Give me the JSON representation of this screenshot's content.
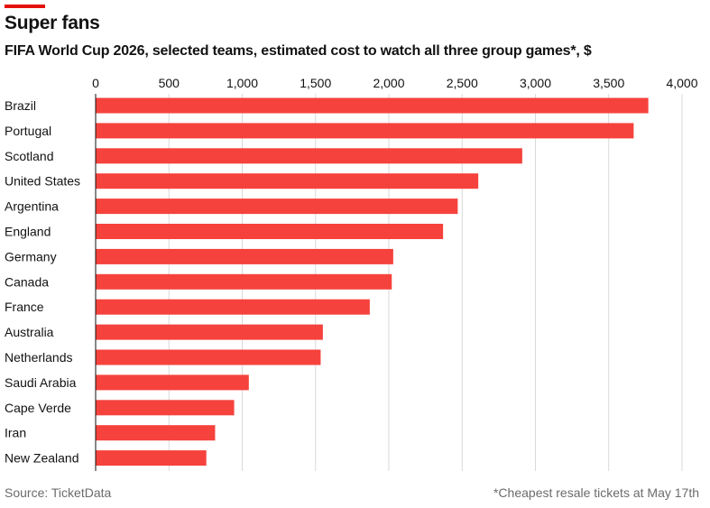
{
  "header": {
    "title": "Super fans",
    "subtitle": "FIFA World Cup 2026, selected teams, estimated cost to watch all three group games*, $"
  },
  "footer": {
    "source": "Source: TicketData",
    "note": "*Cheapest resale tickets at May 17th"
  },
  "colors": {
    "accent": "#e3120b",
    "bar": "#f6423c",
    "grid": "#d9d9d9",
    "axis": "#121212"
  },
  "chart_data": {
    "type": "bar",
    "orientation": "horizontal",
    "categories": [
      "Brazil",
      "Portugal",
      "Scotland",
      "United States",
      "Argentina",
      "England",
      "Germany",
      "Canada",
      "France",
      "Australia",
      "Netherlands",
      "Saudi Arabia",
      "Cape Verde",
      "Iran",
      "New Zealand"
    ],
    "values": [
      3770,
      3670,
      2910,
      2610,
      2470,
      2370,
      2030,
      2020,
      1870,
      1550,
      1535,
      1045,
      945,
      815,
      755
    ],
    "xlim": [
      0,
      4000
    ],
    "xticks": [
      0,
      500,
      1000,
      1500,
      2000,
      2500,
      3000,
      3500,
      4000
    ],
    "xtick_labels": [
      "0",
      "500",
      "1,000",
      "1,500",
      "2,000",
      "2,500",
      "3,000",
      "3,500",
      "4,000"
    ],
    "xaxis_position": "top",
    "grid": true
  }
}
